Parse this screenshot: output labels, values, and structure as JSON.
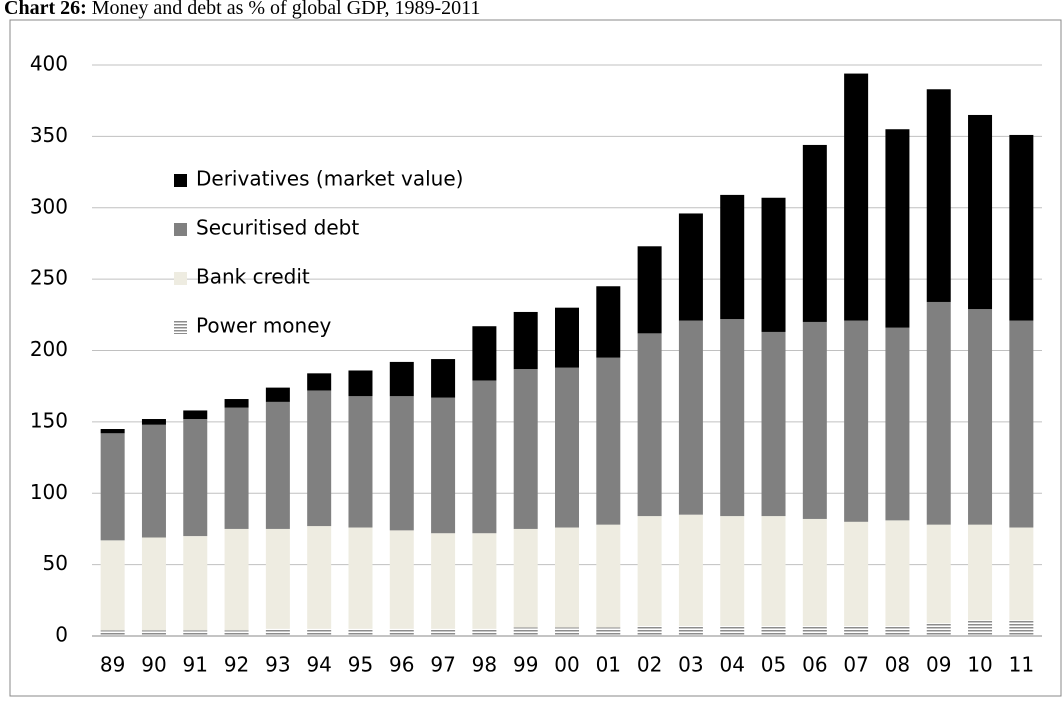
{
  "chart_data": {
    "type": "stacked-bar",
    "title_label": "Chart 26:",
    "title": "Money and debt as % of global GDP, 1989-2011",
    "categories": [
      "89",
      "90",
      "91",
      "92",
      "93",
      "94",
      "95",
      "96",
      "97",
      "98",
      "99",
      "00",
      "01",
      "02",
      "03",
      "04",
      "05",
      "06",
      "07",
      "08",
      "09",
      "10",
      "11"
    ],
    "series": [
      {
        "name": "Power money",
        "color": "#8c8c8c",
        "pattern": "stripes",
        "values": [
          4,
          4,
          4,
          4,
          5,
          5,
          5,
          5,
          5,
          5,
          6,
          6,
          6,
          7,
          7,
          7,
          7,
          7,
          7,
          7,
          9,
          11,
          11
        ]
      },
      {
        "name": "Bank credit",
        "color": "#eeece1",
        "values": [
          63,
          65,
          66,
          71,
          70,
          72,
          71,
          69,
          67,
          67,
          69,
          70,
          72,
          77,
          78,
          77,
          77,
          75,
          73,
          74,
          69,
          67,
          65
        ]
      },
      {
        "name": "Securitised debt",
        "color": "#808080",
        "values": [
          75,
          79,
          82,
          85,
          89,
          95,
          92,
          94,
          95,
          107,
          112,
          112,
          117,
          128,
          136,
          138,
          129,
          138,
          141,
          135,
          156,
          151,
          145
        ]
      },
      {
        "name": "Derivatives (market value)",
        "color": "#000000",
        "values": [
          3,
          4,
          6,
          6,
          10,
          12,
          18,
          24,
          27,
          38,
          40,
          42,
          50,
          61,
          75,
          87,
          94,
          124,
          173,
          139,
          149,
          136,
          130
        ]
      }
    ],
    "ylim": [
      0,
      400
    ],
    "yticks": [
      0,
      50,
      100,
      150,
      200,
      250,
      300,
      350,
      400
    ],
    "grid": true,
    "legend": "upper left"
  }
}
